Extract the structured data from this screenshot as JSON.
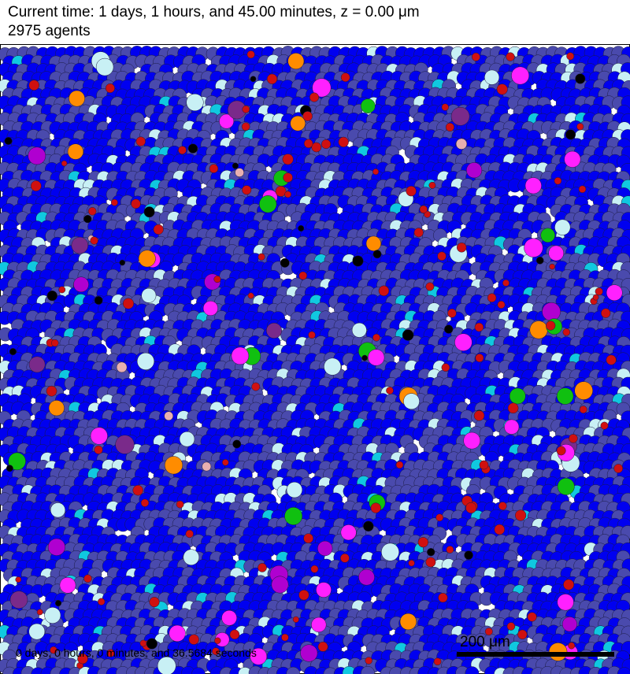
{
  "header": {
    "title": "Current time: 1 days, 1 hours, and 45.00 minutes, z = 0.00 μm",
    "agents": "2975 agents"
  },
  "plot": {
    "timestamp": "0 days, 0 hours, 0 minutes, and 36.5684 seconds",
    "scalebar_label": "200 μm"
  },
  "colors": {
    "background": "#ffffff",
    "blue": "#0000f0",
    "slate": "#4a4aad",
    "light_cyan": "#c8f0f5",
    "cyan": "#10c8e0",
    "magenta": "#ff20ff",
    "purple": "#b000d0",
    "dark_purple": "#7a2a8a",
    "red": "#d01010",
    "orange": "#ff8c00",
    "green": "#10c010",
    "black": "#000000",
    "pink_dead": "#e8b0b0"
  }
}
